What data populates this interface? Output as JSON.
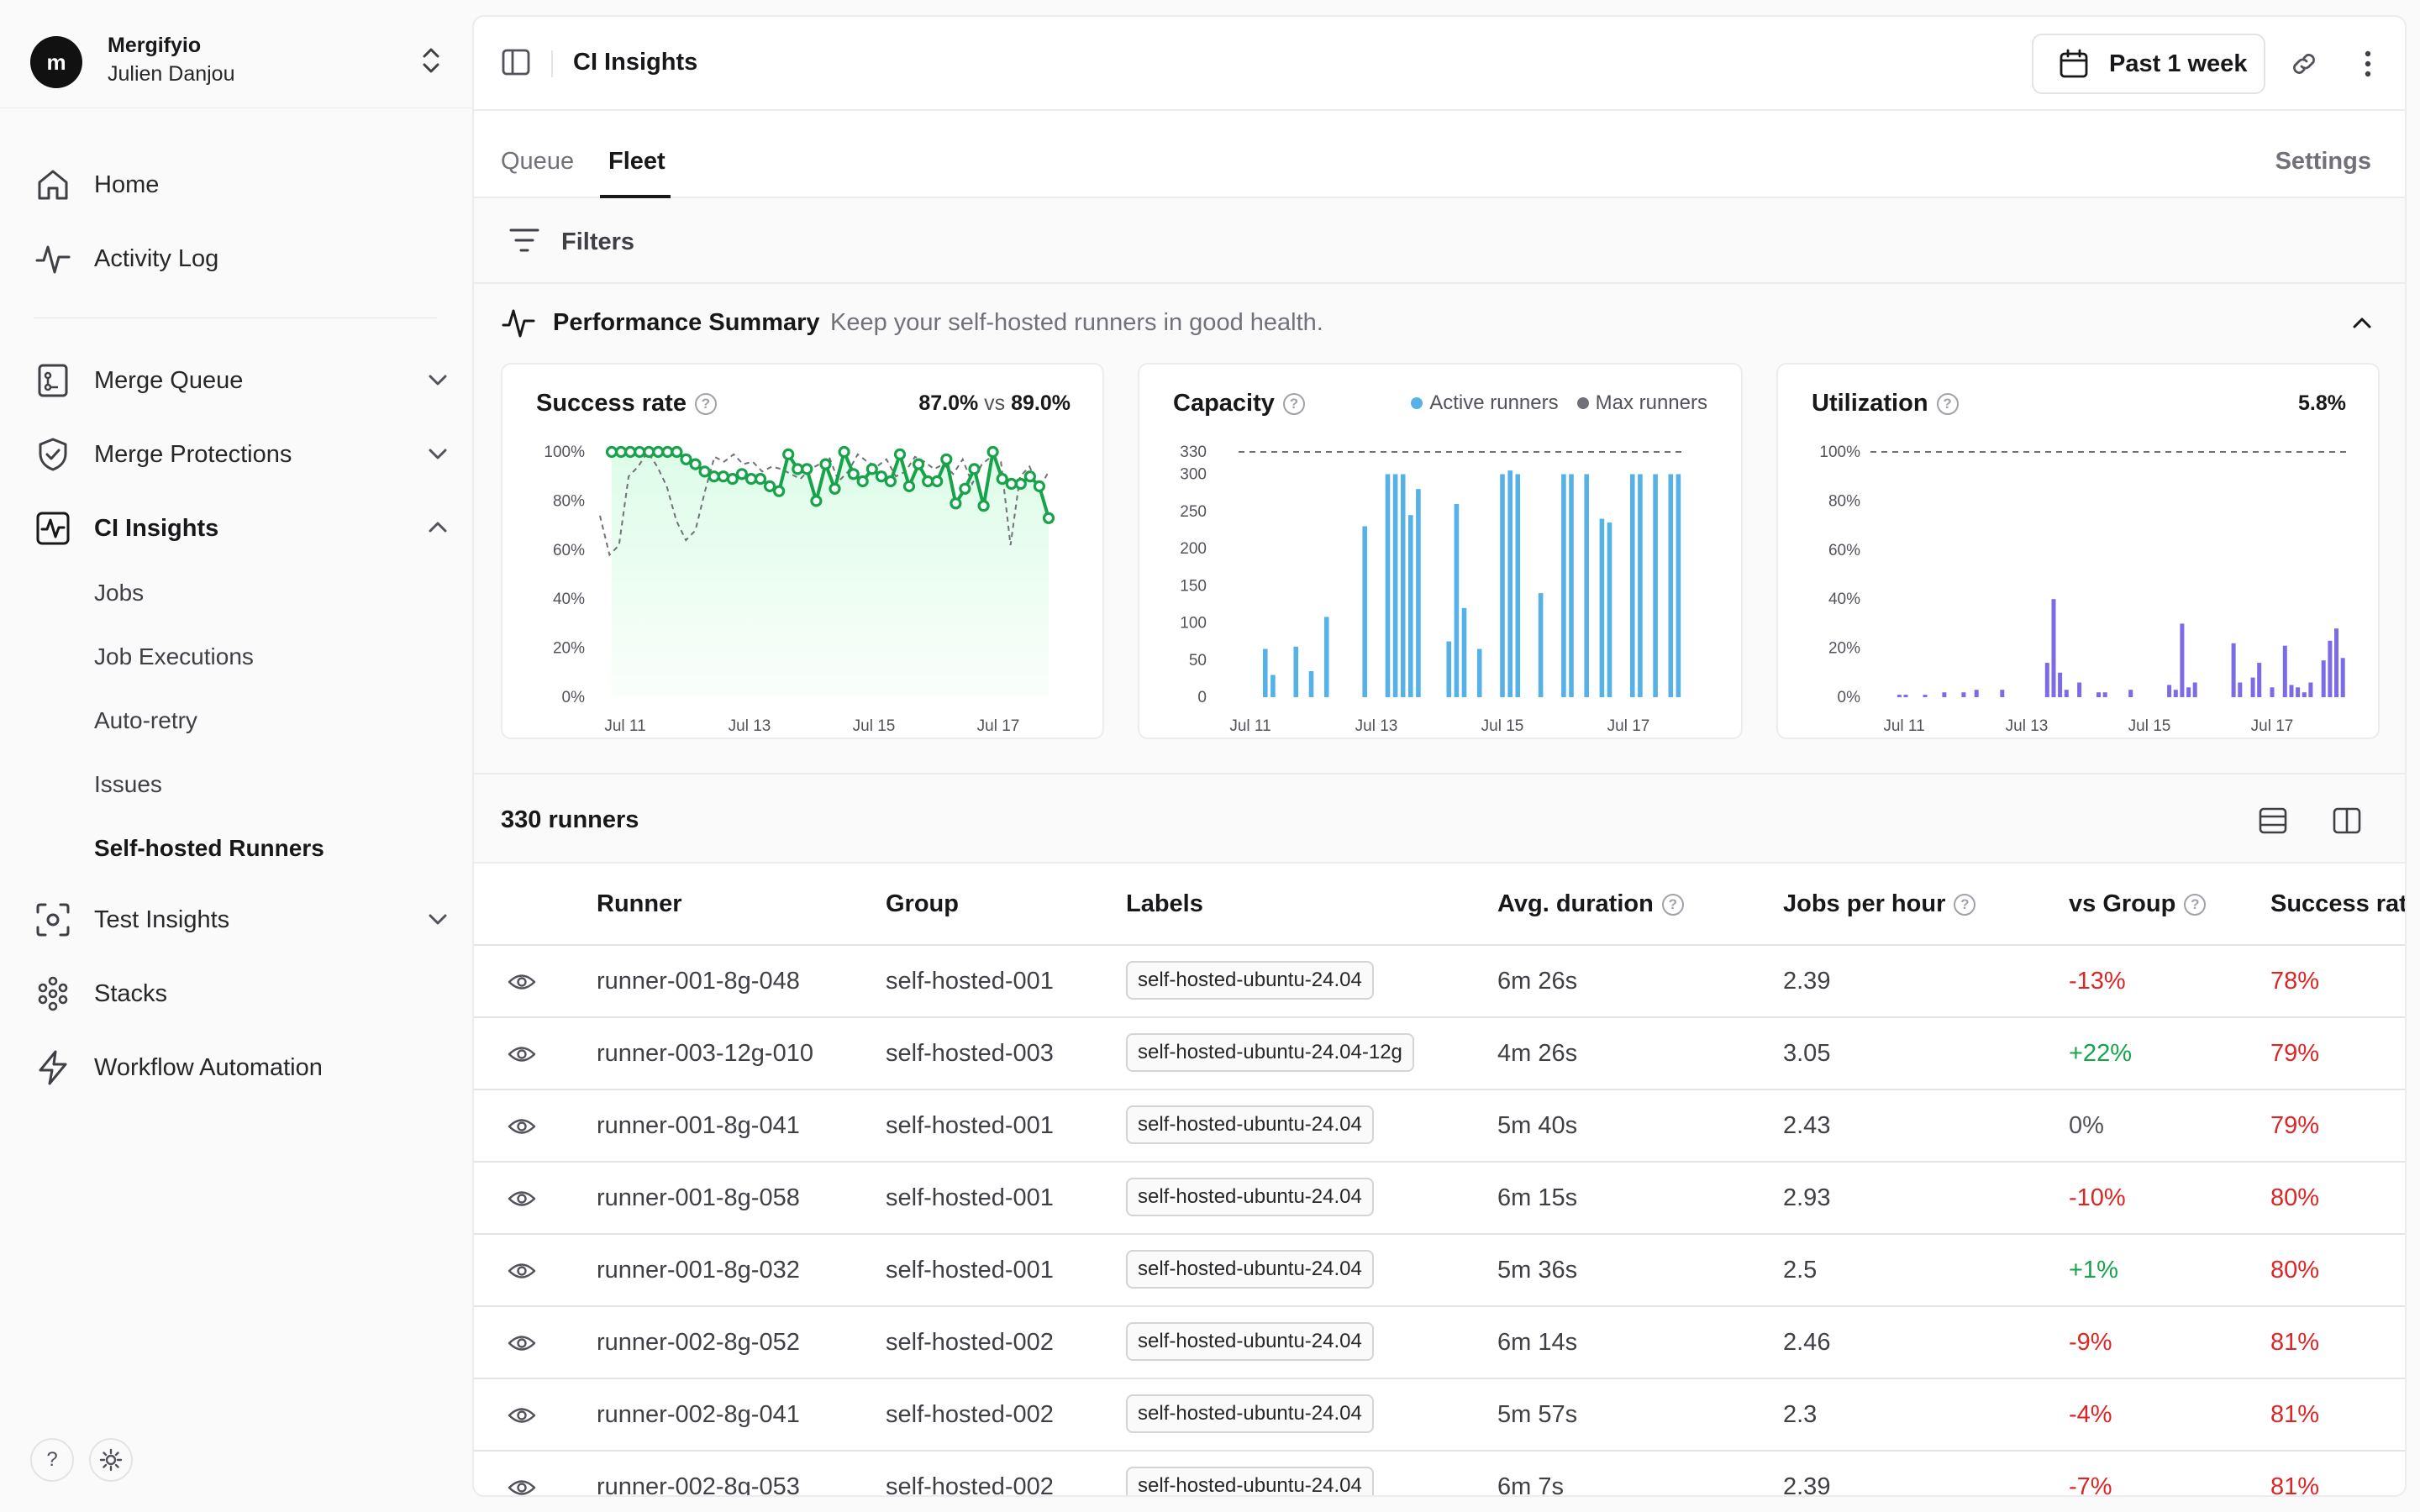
{
  "org": {
    "logo": "m",
    "name": "Mergifyio",
    "user": "Julien Danjou"
  },
  "nav": {
    "home": "Home",
    "activity": "Activity Log",
    "merge_queue": "Merge Queue",
    "merge_protections": "Merge Protections",
    "ci_insights": "CI Insights",
    "sub": [
      "Jobs",
      "Job Executions",
      "Auto-retry",
      "Issues",
      "Self-hosted Runners"
    ],
    "test_insights": "Test Insights",
    "stacks": "Stacks",
    "workflow": "Workflow Automation",
    "help": "?"
  },
  "topbar": {
    "title": "CI Insights",
    "period": "Past 1 week"
  },
  "tabs": {
    "queue": "Queue",
    "fleet": "Fleet",
    "settings": "Settings"
  },
  "filters": {
    "label": "Filters"
  },
  "performance": {
    "title": "Performance Summary",
    "subtitle": "Keep your self-hosted runners in good health.",
    "success": {
      "title": "Success rate",
      "value": "87.0%",
      "vs_label": "vs",
      "vs_value": "89.0%"
    },
    "capacity": {
      "title": "Capacity",
      "legend_active": "Active runners",
      "legend_max": "Max runners"
    },
    "utilization": {
      "title": "Utilization",
      "value": "5.8%"
    }
  },
  "chart_data": [
    {
      "type": "line",
      "title": "Success rate",
      "y_ticks": [
        "100%",
        "80%",
        "60%",
        "40%",
        "20%",
        "0%"
      ],
      "x_ticks": [
        "Jul 11",
        "Jul 13",
        "Jul 15",
        "Jul 17"
      ],
      "ylim": [
        0,
        100
      ],
      "grid": false,
      "series": [
        {
          "values": [
            100,
            100,
            100,
            100,
            100,
            100,
            100,
            100,
            97,
            95,
            92,
            90,
            90,
            89,
            91,
            89,
            89,
            86,
            84,
            99,
            93,
            93,
            80,
            95,
            85,
            100,
            91,
            88,
            93,
            90,
            88,
            99,
            86,
            95,
            88,
            88,
            97,
            79,
            85,
            93,
            78,
            100,
            89,
            87,
            87,
            90,
            86,
            73
          ]
        },
        {
          "values": [
            74,
            58,
            62,
            90,
            94,
            100,
            94,
            86,
            72,
            64,
            68,
            84,
            98,
            96,
            99,
            95,
            96,
            92,
            94,
            93,
            91,
            89,
            93,
            95,
            98,
            88,
            92,
            99,
            96,
            94,
            97,
            90,
            92,
            98,
            96,
            93,
            95,
            91,
            97,
            87,
            95,
            98,
            96,
            62,
            90,
            94,
            85,
            92
          ]
        }
      ]
    },
    {
      "type": "bar",
      "title": "Capacity",
      "y_ticks": [
        330,
        300,
        250,
        200,
        150,
        100,
        50,
        0
      ],
      "x_ticks": [
        "Jul 11",
        "Jul 13",
        "Jul 15",
        "Jul 17"
      ],
      "ylim": [
        0,
        330
      ],
      "max_runners": 330,
      "series": [
        {
          "name": "Active runners",
          "values": [
            0,
            0,
            0,
            65,
            30,
            0,
            0,
            68,
            0,
            35,
            0,
            108,
            0,
            0,
            0,
            0,
            230,
            0,
            0,
            300,
            300,
            300,
            245,
            280,
            0,
            0,
            0,
            75,
            260,
            120,
            0,
            65,
            0,
            0,
            300,
            305,
            300,
            0,
            0,
            140,
            0,
            0,
            300,
            300,
            0,
            300,
            0,
            240,
            235,
            0,
            0,
            300,
            300,
            0,
            300,
            0,
            300,
            300
          ]
        }
      ]
    },
    {
      "type": "bar",
      "title": "Utilization",
      "y_ticks": [
        "100%",
        "80%",
        "60%",
        "40%",
        "20%",
        "0%"
      ],
      "x_ticks": [
        "Jul 11",
        "Jul 13",
        "Jul 15",
        "Jul 17"
      ],
      "ylim": [
        0,
        100
      ],
      "series": [
        {
          "values": [
            0,
            0,
            0,
            0,
            1,
            1,
            0,
            0,
            1,
            0,
            0,
            2,
            0,
            0,
            2,
            0,
            3,
            0,
            0,
            0,
            3,
            0,
            0,
            0,
            0,
            0,
            0,
            14,
            40,
            10,
            3,
            0,
            6,
            0,
            0,
            2,
            2,
            0,
            0,
            0,
            3,
            0,
            0,
            0,
            0,
            0,
            5,
            3,
            30,
            4,
            6,
            0,
            0,
            0,
            0,
            0,
            22,
            6,
            0,
            8,
            14,
            0,
            4,
            0,
            21,
            5,
            4,
            2,
            6,
            0,
            15,
            23,
            28,
            16
          ]
        }
      ]
    }
  ],
  "runners": {
    "count_label": "330 runners",
    "columns": [
      "Runner",
      "Group",
      "Labels",
      "Avg. duration",
      "Jobs per hour",
      "vs Group",
      "Success rat"
    ],
    "rows": [
      {
        "runner": "runner-001-8g-048",
        "group": "self-hosted-001",
        "label": "self-hosted-ubuntu-24.04",
        "duration": "6m 26s",
        "jobs": "2.39",
        "vs": "-13%",
        "vs_kind": "neg",
        "success": "78%"
      },
      {
        "runner": "runner-003-12g-010",
        "group": "self-hosted-003",
        "label": "self-hosted-ubuntu-24.04-12g",
        "duration": "4m 26s",
        "jobs": "3.05",
        "vs": "+22%",
        "vs_kind": "pos",
        "success": "79%"
      },
      {
        "runner": "runner-001-8g-041",
        "group": "self-hosted-001",
        "label": "self-hosted-ubuntu-24.04",
        "duration": "5m 40s",
        "jobs": "2.43",
        "vs": "0%",
        "vs_kind": "neu",
        "success": "79%"
      },
      {
        "runner": "runner-001-8g-058",
        "group": "self-hosted-001",
        "label": "self-hosted-ubuntu-24.04",
        "duration": "6m 15s",
        "jobs": "2.93",
        "vs": "-10%",
        "vs_kind": "neg",
        "success": "80%"
      },
      {
        "runner": "runner-001-8g-032",
        "group": "self-hosted-001",
        "label": "self-hosted-ubuntu-24.04",
        "duration": "5m 36s",
        "jobs": "2.5",
        "vs": "+1%",
        "vs_kind": "pos",
        "success": "80%"
      },
      {
        "runner": "runner-002-8g-052",
        "group": "self-hosted-002",
        "label": "self-hosted-ubuntu-24.04",
        "duration": "6m 14s",
        "jobs": "2.46",
        "vs": "-9%",
        "vs_kind": "neg",
        "success": "81%"
      },
      {
        "runner": "runner-002-8g-041",
        "group": "self-hosted-002",
        "label": "self-hosted-ubuntu-24.04",
        "duration": "5m 57s",
        "jobs": "2.3",
        "vs": "-4%",
        "vs_kind": "neg",
        "success": "81%"
      },
      {
        "runner": "runner-002-8g-053",
        "group": "self-hosted-002",
        "label": "self-hosted-ubuntu-24.04",
        "duration": "6m 7s",
        "jobs": "2.39",
        "vs": "-7%",
        "vs_kind": "neg",
        "success": "81%"
      }
    ]
  },
  "colors": {
    "success_line": "#16a34a",
    "success_fill": "#dcfce7",
    "compare_line": "#71717a",
    "active_bar": "#56b2e6",
    "max_line": "#71717a",
    "util_bar": "#7b6be6",
    "negative": "#dc2626",
    "positive": "#16a34a"
  },
  "icons": [
    "sidebar-toggle-icon",
    "calendar-icon",
    "link-icon",
    "more-vertical-icon",
    "home-icon",
    "activity-icon",
    "merge-queue-icon",
    "shield-icon",
    "ci-insights-icon",
    "test-insights-icon",
    "stacks-icon",
    "lightning-icon",
    "filter-icon",
    "eye-icon",
    "help-icon",
    "sun-icon",
    "chevron-down-icon",
    "chevron-up-icon",
    "chevron-up-down-icon",
    "list-view-icon",
    "columns-view-icon",
    "pulse-icon"
  ]
}
